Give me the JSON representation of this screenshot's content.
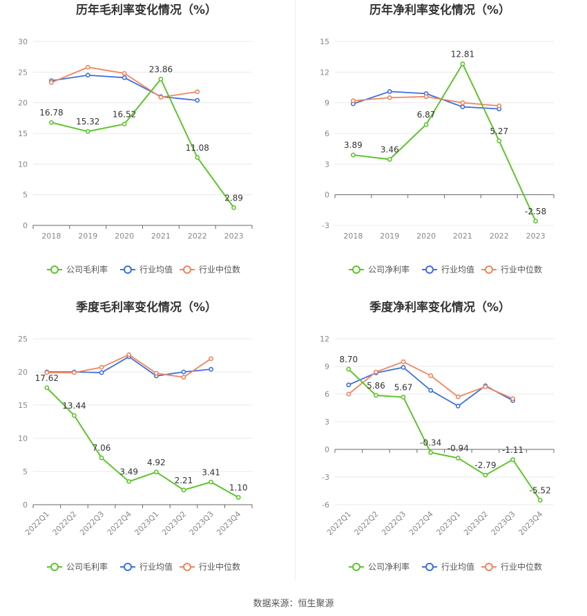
{
  "colors": {
    "company": "#5dc42a",
    "industry_avg": "#3d6ee0",
    "industry_median": "#f0845c",
    "grid": "#e8e8e8",
    "axis": "#666666",
    "tick_text": "#888888",
    "title": "#333333"
  },
  "legend_icon": "circle-line-icon",
  "source_text": "数据来源：恒生聚源",
  "chart_data": [
    {
      "id": "annual-gross",
      "type": "line",
      "title": "历年毛利率变化情况（%）",
      "categories": [
        "2018",
        "2019",
        "2020",
        "2021",
        "2022",
        "2023"
      ],
      "ylim": [
        0,
        30
      ],
      "yticks": [
        0,
        5,
        10,
        15,
        20,
        25,
        30
      ],
      "grid": true,
      "legend_position": "bottom",
      "legend": [
        "公司毛利率",
        "行业均值",
        "行业中位数"
      ],
      "series": [
        {
          "name": "公司毛利率",
          "key": "company",
          "values": [
            16.78,
            15.32,
            16.52,
            23.86,
            11.08,
            2.89
          ],
          "labels": [
            "16.78",
            "15.32",
            "16.52",
            "23.86",
            "11.08",
            "2.89"
          ]
        },
        {
          "name": "行业均值",
          "key": "industry_avg",
          "values": [
            23.6,
            24.5,
            24.1,
            21.0,
            20.4,
            null
          ]
        },
        {
          "name": "行业中位数",
          "key": "industry_median",
          "values": [
            23.3,
            25.8,
            24.8,
            20.9,
            21.8,
            null
          ]
        }
      ]
    },
    {
      "id": "annual-net",
      "type": "line",
      "title": "历年净利率变化情况（%）",
      "categories": [
        "2018",
        "2019",
        "2020",
        "2021",
        "2022",
        "2023"
      ],
      "ylim": [
        -3,
        15
      ],
      "yticks": [
        -3,
        0,
        3,
        6,
        9,
        12,
        15
      ],
      "grid": true,
      "legend_position": "bottom",
      "legend": [
        "公司净利率",
        "行业均值",
        "行业中位数"
      ],
      "series": [
        {
          "name": "公司净利率",
          "key": "company",
          "values": [
            3.89,
            3.46,
            6.87,
            12.81,
            5.27,
            -2.58
          ],
          "labels": [
            "3.89",
            "3.46",
            "6.87",
            "12.81",
            "5.27",
            "-2.58"
          ]
        },
        {
          "name": "行业均值",
          "key": "industry_avg",
          "values": [
            8.9,
            10.1,
            9.9,
            8.6,
            8.4,
            null
          ]
        },
        {
          "name": "行业中位数",
          "key": "industry_median",
          "values": [
            9.2,
            9.5,
            9.6,
            9.0,
            8.7,
            null
          ]
        }
      ]
    },
    {
      "id": "quarterly-gross",
      "type": "line",
      "title": "季度毛利率变化情况（%）",
      "categories": [
        "2022Q1",
        "2022Q2",
        "2022Q3",
        "2022Q4",
        "2023Q1",
        "2023Q2",
        "2023Q3",
        "2023Q4"
      ],
      "ylim": [
        0,
        25
      ],
      "yticks": [
        0,
        5,
        10,
        15,
        20,
        25
      ],
      "grid": true,
      "legend_position": "bottom",
      "legend": [
        "公司毛利率",
        "行业均值",
        "行业中位数"
      ],
      "series": [
        {
          "name": "公司毛利率",
          "key": "company",
          "values": [
            17.62,
            13.44,
            7.06,
            3.49,
            4.92,
            2.21,
            3.41,
            1.1
          ],
          "labels": [
            "17.62",
            "13.44",
            "7.06",
            "3.49",
            "4.92",
            "2.21",
            "3.41",
            "1.10"
          ]
        },
        {
          "name": "行业均值",
          "key": "industry_avg",
          "values": [
            20.0,
            20.0,
            19.9,
            22.3,
            19.4,
            20.0,
            20.4,
            null
          ]
        },
        {
          "name": "行业中位数",
          "key": "industry_median",
          "values": [
            19.9,
            19.9,
            20.7,
            22.6,
            19.8,
            19.2,
            22.0,
            null
          ]
        }
      ]
    },
    {
      "id": "quarterly-net",
      "type": "line",
      "title": "季度净利率变化情况（%）",
      "categories": [
        "2022Q1",
        "2022Q2",
        "2022Q3",
        "2022Q4",
        "2023Q1",
        "2023Q2",
        "2023Q3",
        "2023Q4"
      ],
      "ylim": [
        -6,
        12
      ],
      "yticks": [
        -6,
        -3,
        0,
        3,
        6,
        9,
        12
      ],
      "grid": true,
      "legend_position": "bottom",
      "legend": [
        "公司净利率",
        "行业均值",
        "行业中位数"
      ],
      "series": [
        {
          "name": "公司净利率",
          "key": "company",
          "values": [
            8.7,
            5.86,
            5.67,
            -0.34,
            -0.94,
            -2.79,
            -1.11,
            -5.52
          ],
          "labels": [
            "8.70",
            "5.86",
            "5.67",
            "-0.34",
            "-0.94",
            "-2.79",
            "-1.11",
            "-5.52"
          ]
        },
        {
          "name": "行业均值",
          "key": "industry_avg",
          "values": [
            7.0,
            8.3,
            8.9,
            6.4,
            4.7,
            6.9,
            5.3,
            null
          ]
        },
        {
          "name": "行业中位数",
          "key": "industry_median",
          "values": [
            6.0,
            8.4,
            9.5,
            8.0,
            5.7,
            6.8,
            5.5,
            null
          ]
        }
      ]
    }
  ]
}
